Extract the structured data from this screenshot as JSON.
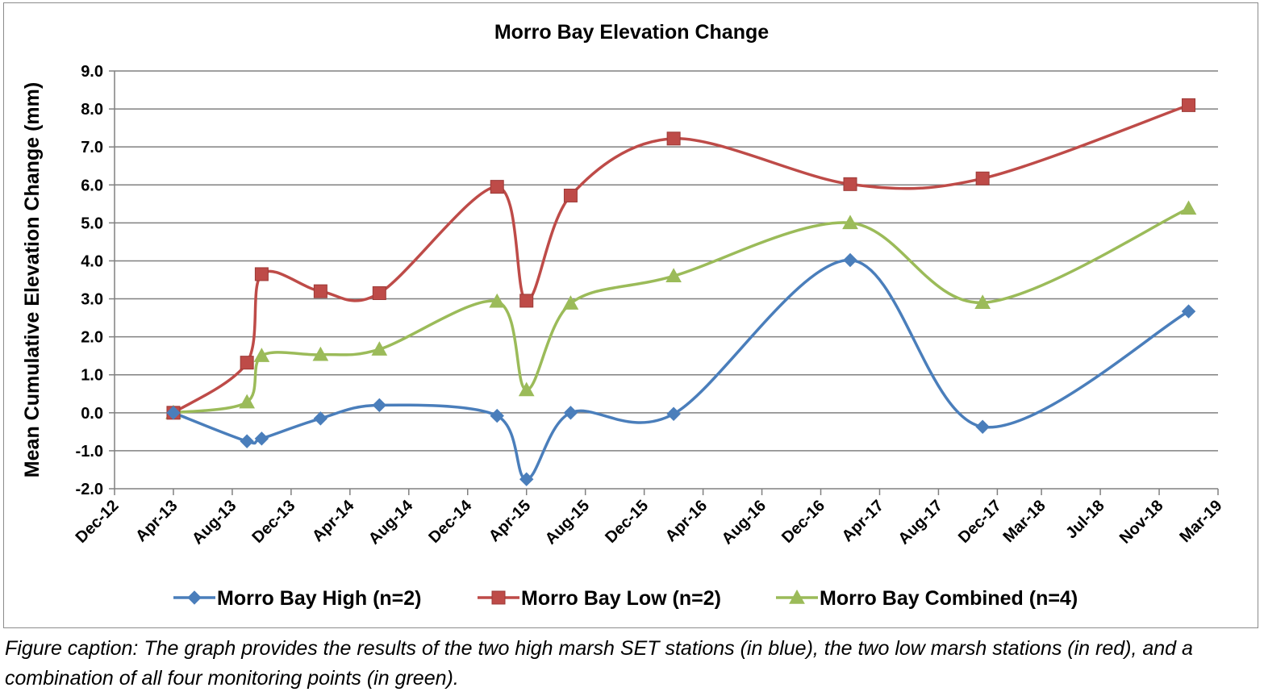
{
  "chart_data": {
    "type": "line",
    "title": "Morro Bay Elevation Change",
    "xlabel": "",
    "ylabel": "Mean Cumulative Elevation Change (mm)",
    "ylim": [
      -2.0,
      9.0
    ],
    "ytick_step": 1.0,
    "x_tick_labels": [
      "Dec-12",
      "Apr-13",
      "Aug-13",
      "Dec-13",
      "Apr-14",
      "Aug-14",
      "Dec-14",
      "Apr-15",
      "Aug-15",
      "Dec-15",
      "Apr-16",
      "Aug-16",
      "Dec-16",
      "Apr-17",
      "Aug-17",
      "Dec-17",
      "Mar-18",
      "Jul-18",
      "Nov-18",
      "Mar-19"
    ],
    "grid": true,
    "legend": "bottom",
    "series": [
      {
        "name": "Morro Bay High (n=2)",
        "color": "#4A7EBB",
        "marker": "diamond",
        "points": [
          {
            "x": "Apr-13",
            "y": 0.0
          },
          {
            "x": "Sep-13",
            "y": -0.75
          },
          {
            "x": "Oct-13",
            "y": -0.68
          },
          {
            "x": "Feb-14",
            "y": -0.15
          },
          {
            "x": "Jun-14",
            "y": 0.2
          },
          {
            "x": "Feb-15",
            "y": -0.08
          },
          {
            "x": "Apr-15",
            "y": -1.75
          },
          {
            "x": "Jul-15",
            "y": 0.0
          },
          {
            "x": "Feb-16",
            "y": -0.03
          },
          {
            "x": "Feb-17",
            "y": 4.02
          },
          {
            "x": "Nov-17",
            "y": -0.37
          },
          {
            "x": "Jan-19",
            "y": 2.67
          }
        ]
      },
      {
        "name": "Morro Bay Low (n=2)",
        "color": "#BE4B48",
        "marker": "square",
        "points": [
          {
            "x": "Apr-13",
            "y": 0.0
          },
          {
            "x": "Sep-13",
            "y": 1.32
          },
          {
            "x": "Oct-13",
            "y": 3.65
          },
          {
            "x": "Feb-14",
            "y": 3.2
          },
          {
            "x": "Jun-14",
            "y": 3.15
          },
          {
            "x": "Feb-15",
            "y": 5.95
          },
          {
            "x": "Apr-15",
            "y": 2.95
          },
          {
            "x": "Jul-15",
            "y": 5.72
          },
          {
            "x": "Feb-16",
            "y": 7.22
          },
          {
            "x": "Feb-17",
            "y": 6.02
          },
          {
            "x": "Nov-17",
            "y": 6.17
          },
          {
            "x": "Jan-19",
            "y": 8.1
          }
        ]
      },
      {
        "name": "Morro Bay Combined (n=4)",
        "color": "#9BBB59",
        "marker": "triangle",
        "points": [
          {
            "x": "Apr-13",
            "y": 0.0
          },
          {
            "x": "Sep-13",
            "y": 0.28
          },
          {
            "x": "Oct-13",
            "y": 1.5
          },
          {
            "x": "Feb-14",
            "y": 1.53
          },
          {
            "x": "Jun-14",
            "y": 1.67
          },
          {
            "x": "Feb-15",
            "y": 2.93
          },
          {
            "x": "Apr-15",
            "y": 0.6
          },
          {
            "x": "Jul-15",
            "y": 2.88
          },
          {
            "x": "Feb-16",
            "y": 3.6
          },
          {
            "x": "Feb-17",
            "y": 5.0
          },
          {
            "x": "Nov-17",
            "y": 2.9
          },
          {
            "x": "Jan-19",
            "y": 5.38
          }
        ]
      }
    ]
  },
  "caption": "Figure caption: The graph provides the results of the two high marsh SET stations (in blue), the two low marsh stations (in red), and a combination of all four monitoring points (in green)."
}
